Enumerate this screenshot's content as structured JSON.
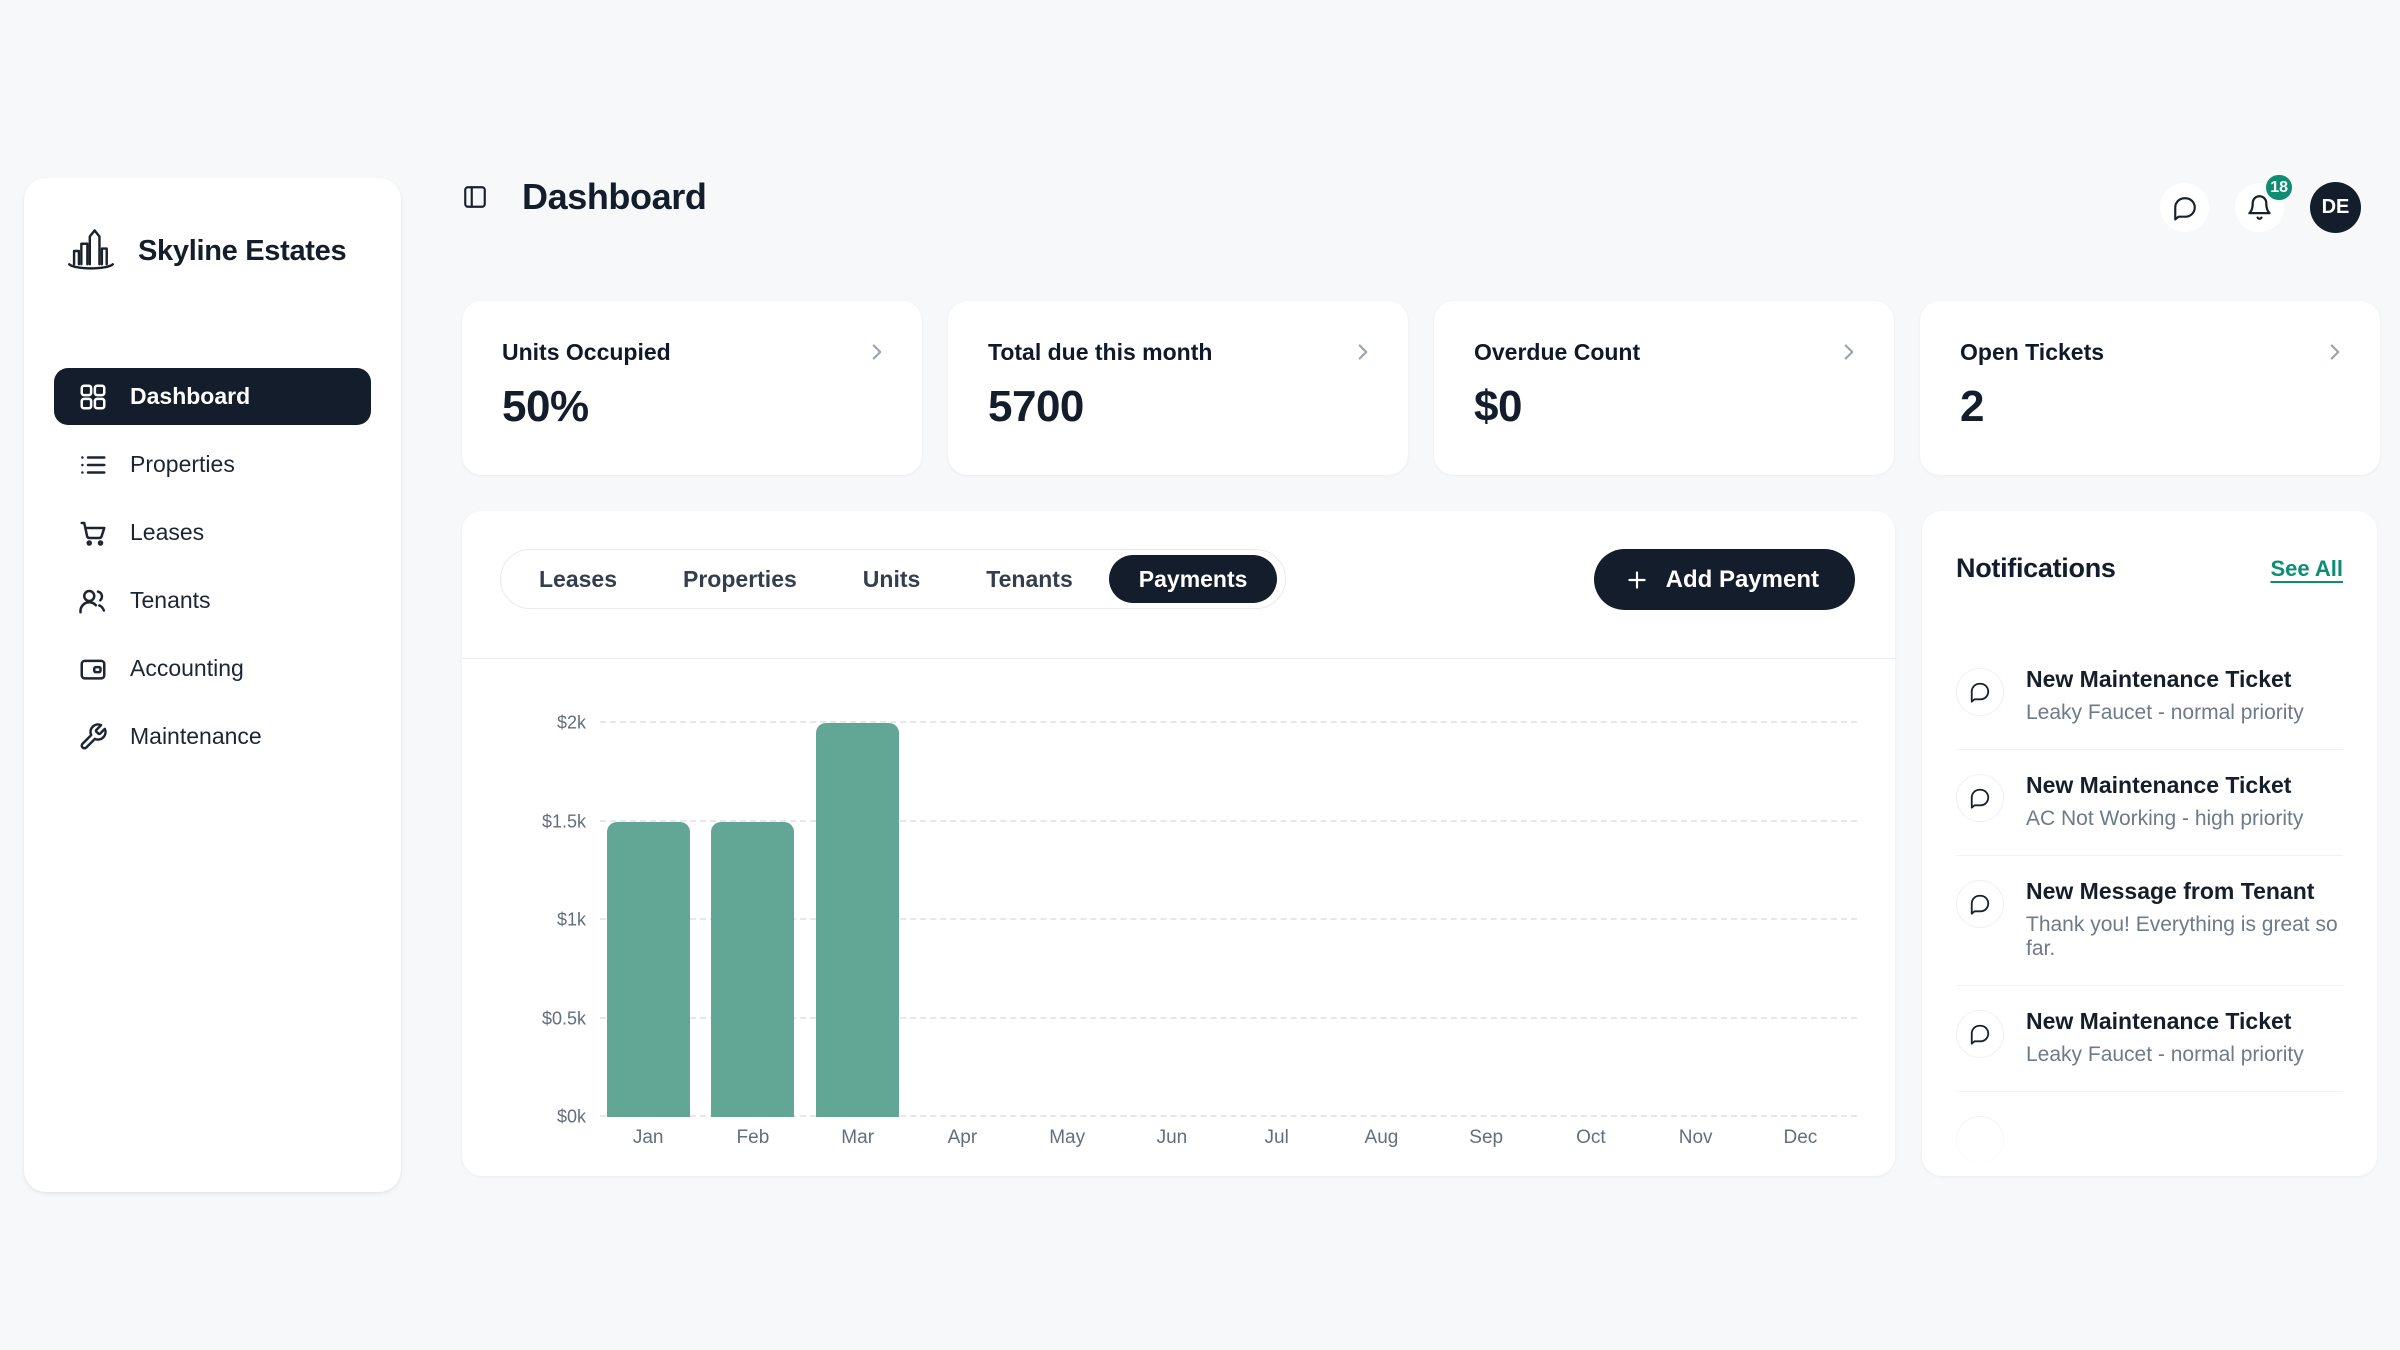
{
  "brand": {
    "name": "Skyline Estates"
  },
  "sidebar": {
    "items": [
      {
        "label": "Dashboard",
        "active": true
      },
      {
        "label": "Properties",
        "active": false
      },
      {
        "label": "Leases",
        "active": false
      },
      {
        "label": "Tenants",
        "active": false
      },
      {
        "label": "Accounting",
        "active": false
      },
      {
        "label": "Maintenance",
        "active": false
      }
    ]
  },
  "header": {
    "title": "Dashboard",
    "notification_count": "18",
    "avatar_initials": "DE"
  },
  "stats": {
    "cards": [
      {
        "label": "Units Occupied",
        "value": "50%"
      },
      {
        "label": "Total due this month",
        "value": "5700"
      },
      {
        "label": "Overdue Count",
        "value": "$0"
      },
      {
        "label": "Open Tickets",
        "value": "2"
      }
    ]
  },
  "tabs": {
    "items": [
      {
        "label": "Leases",
        "active": false
      },
      {
        "label": "Properties",
        "active": false
      },
      {
        "label": "Units",
        "active": false
      },
      {
        "label": "Tenants",
        "active": false
      },
      {
        "label": "Payments",
        "active": true
      }
    ],
    "add_button_label": "Add Payment"
  },
  "chart_data": {
    "type": "bar",
    "categories": [
      "Jan",
      "Feb",
      "Mar",
      "Apr",
      "May",
      "Jun",
      "Jul",
      "Aug",
      "Sep",
      "Oct",
      "Nov",
      "Dec"
    ],
    "values": [
      1500,
      1500,
      2000,
      0,
      0,
      0,
      0,
      0,
      0,
      0,
      0,
      0
    ],
    "title": "",
    "xlabel": "",
    "ylabel": "",
    "ylim": [
      0,
      2000
    ],
    "y_ticks": [
      0,
      500,
      1000,
      1500,
      2000
    ],
    "y_tick_labels": [
      "$0k",
      "$0.5k",
      "$1k",
      "$1.5k",
      "$2k"
    ],
    "grid": "horizontal-dashed",
    "legend": "none",
    "bar_color": "#62a795"
  },
  "notifications": {
    "title": "Notifications",
    "see_all_label": "See All",
    "items": [
      {
        "title": "New Maintenance Ticket",
        "subtitle": "Leaky Faucet - normal priority"
      },
      {
        "title": "New Maintenance Ticket",
        "subtitle": "AC Not Working - high priority"
      },
      {
        "title": "New Message from Tenant",
        "subtitle": "Thank you! Everything is great so far."
      },
      {
        "title": "New Maintenance Ticket",
        "subtitle": "Leaky Faucet - normal priority"
      }
    ]
  },
  "colors": {
    "page_bg": "#f7f8fa",
    "dark": "#141d2b",
    "accent_teal": "#0e8c74",
    "bar": "#62a795",
    "muted_text": "#6f7a88"
  }
}
